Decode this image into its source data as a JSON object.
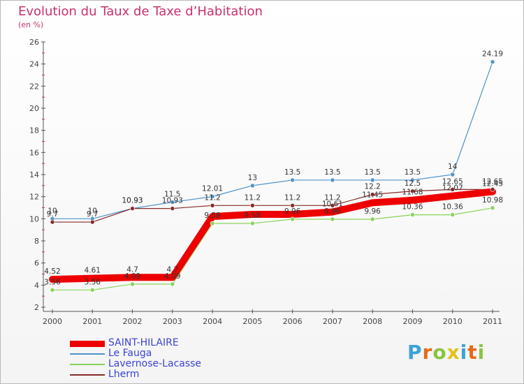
{
  "title": "Evolution du Taux de Taxe d’Habitation",
  "unit_label": "(en %)",
  "logo": {
    "text": "Proxiti",
    "colors": [
      "#3aa3d8",
      "#e36c1a",
      "#8ac43f",
      "#e3c21a",
      "#3aa3d8",
      "#e36c1a",
      "#8ac43f"
    ]
  },
  "chart_data": {
    "type": "line",
    "title": "Evolution du Taux de Taxe d’Habitation",
    "ylabel": "(en %)",
    "xlabel": "",
    "x": [
      "2000",
      "2001",
      "2002",
      "2003",
      "2004",
      "2005",
      "2006",
      "2007",
      "2008",
      "2009",
      "2010",
      "2011"
    ],
    "ylim": [
      2,
      26
    ],
    "yticks": [
      "2",
      "4",
      "6",
      "8",
      "10",
      "12",
      "14",
      "16",
      "18",
      "20",
      "22",
      "24",
      "26"
    ],
    "grid": false,
    "legend_position": "bottom-left",
    "series": [
      {
        "name": "SAINT-HILAIRE",
        "color": "#ee0000",
        "values": [
          4.52,
          4.61,
          4.7,
          4.7,
          10.2,
          10.4,
          10.4,
          10.61,
          11.45,
          11.68,
          12.07,
          12.45
        ],
        "labels": [
          "4.52",
          "4.61",
          "4.7",
          "4.7",
          "",
          "",
          "",
          "10.61",
          "11.45",
          "11.68",
          "12.07",
          "12.45"
        ]
      },
      {
        "name": "Le Fauga",
        "color": "#4f93c9",
        "values": [
          10,
          10,
          10.93,
          11.5,
          12.01,
          13,
          13.5,
          13.5,
          13.5,
          13.5,
          14,
          24.19
        ],
        "labels": [
          "10",
          "10",
          "10.93",
          "11.5",
          "12.01",
          "13",
          "13.5",
          "13.5",
          "13.5",
          "13.5",
          "14",
          "24.19"
        ]
      },
      {
        "name": "Lavernose-Lacasse",
        "color": "#88d35a",
        "values": [
          3.56,
          3.56,
          4.09,
          4.09,
          9.58,
          9.58,
          9.96,
          9.96,
          9.96,
          10.36,
          10.36,
          10.98
        ],
        "labels": [
          "3.56",
          "3.56",
          "4.09",
          "4.09",
          "9.58",
          "9.58",
          "9.96",
          "9.96",
          "9.96",
          "10.36",
          "10.36",
          "10.98"
        ]
      },
      {
        "name": "Lherm",
        "color": "#8a2a2a",
        "values": [
          9.7,
          9.7,
          10.93,
          10.93,
          11.2,
          11.2,
          11.2,
          11.2,
          12.2,
          12.5,
          12.65,
          12.65
        ],
        "labels": [
          "9.7",
          "9.7",
          "10.93",
          "10.93",
          "11.2",
          "11.2",
          "11.2",
          "11.2",
          "12.2",
          "12.5",
          "12.65",
          "12.65"
        ]
      }
    ]
  }
}
